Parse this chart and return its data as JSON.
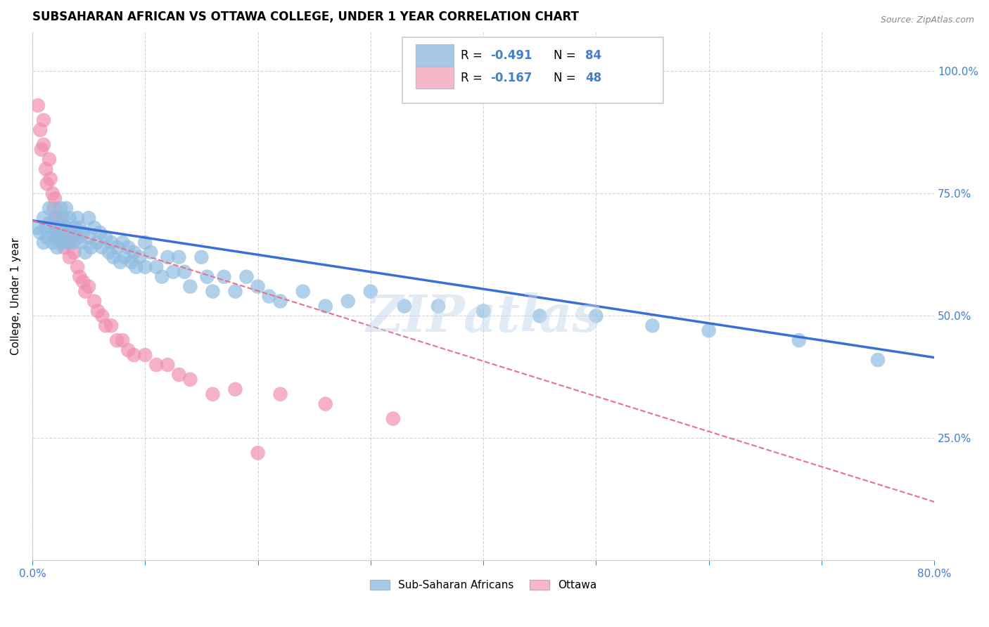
{
  "title": "SUBSAHARAN AFRICAN VS OTTAWA COLLEGE, UNDER 1 YEAR CORRELATION CHART",
  "source": "Source: ZipAtlas.com",
  "ylabel": "College, Under 1 year",
  "ytick_labels": [
    "25.0%",
    "50.0%",
    "75.0%",
    "100.0%"
  ],
  "ytick_positions": [
    0.25,
    0.5,
    0.75,
    1.0
  ],
  "xlim": [
    0.0,
    0.8
  ],
  "ylim": [
    0.0,
    1.08
  ],
  "watermark": "ZIPatlas",
  "legend_entries": [
    {
      "label": "Sub-Saharan Africans",
      "color": "#a8c8e8",
      "R": "-0.491",
      "N": "84"
    },
    {
      "label": "Ottawa",
      "color": "#f4b8c8",
      "R": "-0.167",
      "N": "48"
    }
  ],
  "blue_scatter_x": [
    0.005,
    0.007,
    0.01,
    0.01,
    0.012,
    0.013,
    0.015,
    0.015,
    0.018,
    0.018,
    0.02,
    0.021,
    0.022,
    0.022,
    0.025,
    0.025,
    0.026,
    0.027,
    0.028,
    0.03,
    0.03,
    0.032,
    0.033,
    0.035,
    0.036,
    0.038,
    0.04,
    0.04,
    0.042,
    0.043,
    0.045,
    0.047,
    0.05,
    0.05,
    0.052,
    0.055,
    0.057,
    0.06,
    0.062,
    0.065,
    0.068,
    0.07,
    0.072,
    0.075,
    0.078,
    0.08,
    0.082,
    0.085,
    0.088,
    0.09,
    0.092,
    0.095,
    0.1,
    0.1,
    0.105,
    0.11,
    0.115,
    0.12,
    0.125,
    0.13,
    0.135,
    0.14,
    0.15,
    0.155,
    0.16,
    0.17,
    0.18,
    0.19,
    0.2,
    0.21,
    0.22,
    0.24,
    0.26,
    0.28,
    0.3,
    0.33,
    0.36,
    0.4,
    0.45,
    0.5,
    0.55,
    0.6,
    0.68,
    0.75
  ],
  "blue_scatter_y": [
    0.68,
    0.67,
    0.7,
    0.65,
    0.68,
    0.66,
    0.72,
    0.69,
    0.67,
    0.65,
    0.7,
    0.68,
    0.66,
    0.64,
    0.72,
    0.68,
    0.65,
    0.7,
    0.67,
    0.72,
    0.68,
    0.65,
    0.7,
    0.67,
    0.65,
    0.68,
    0.7,
    0.66,
    0.68,
    0.65,
    0.67,
    0.63,
    0.7,
    0.66,
    0.64,
    0.68,
    0.65,
    0.67,
    0.64,
    0.66,
    0.63,
    0.65,
    0.62,
    0.64,
    0.61,
    0.65,
    0.62,
    0.64,
    0.61,
    0.63,
    0.6,
    0.62,
    0.65,
    0.6,
    0.63,
    0.6,
    0.58,
    0.62,
    0.59,
    0.62,
    0.59,
    0.56,
    0.62,
    0.58,
    0.55,
    0.58,
    0.55,
    0.58,
    0.56,
    0.54,
    0.53,
    0.55,
    0.52,
    0.53,
    0.55,
    0.52,
    0.52,
    0.51,
    0.5,
    0.5,
    0.48,
    0.47,
    0.45,
    0.41
  ],
  "pink_scatter_x": [
    0.005,
    0.007,
    0.008,
    0.01,
    0.01,
    0.012,
    0.013,
    0.015,
    0.016,
    0.018,
    0.019,
    0.02,
    0.021,
    0.022,
    0.023,
    0.025,
    0.027,
    0.028,
    0.03,
    0.032,
    0.033,
    0.035,
    0.037,
    0.04,
    0.042,
    0.045,
    0.047,
    0.05,
    0.055,
    0.058,
    0.062,
    0.065,
    0.07,
    0.075,
    0.08,
    0.085,
    0.09,
    0.1,
    0.11,
    0.12,
    0.13,
    0.14,
    0.16,
    0.18,
    0.2,
    0.22,
    0.26,
    0.32
  ],
  "pink_scatter_y": [
    0.93,
    0.88,
    0.84,
    0.9,
    0.85,
    0.8,
    0.77,
    0.82,
    0.78,
    0.75,
    0.72,
    0.74,
    0.7,
    0.68,
    0.66,
    0.7,
    0.67,
    0.64,
    0.68,
    0.65,
    0.62,
    0.66,
    0.63,
    0.6,
    0.58,
    0.57,
    0.55,
    0.56,
    0.53,
    0.51,
    0.5,
    0.48,
    0.48,
    0.45,
    0.45,
    0.43,
    0.42,
    0.42,
    0.4,
    0.4,
    0.38,
    0.37,
    0.34,
    0.35,
    0.22,
    0.34,
    0.32,
    0.29
  ],
  "blue_line_x": [
    0.0,
    0.8
  ],
  "blue_line_y": [
    0.695,
    0.415
  ],
  "pink_line_x": [
    0.0,
    0.8
  ],
  "pink_line_y": [
    0.695,
    0.12
  ],
  "blue_scatter_color": "#90bce0",
  "pink_scatter_color": "#f090b0",
  "blue_line_color": "#3a6fd8",
  "pink_line_color": "#e87090",
  "grid_color": "#d0d0d0",
  "background_color": "#ffffff",
  "title_fontsize": 12,
  "axis_label_color": "#4080d0",
  "legend_R_color": "#4080d0",
  "legend_N_color": "#4080d0"
}
